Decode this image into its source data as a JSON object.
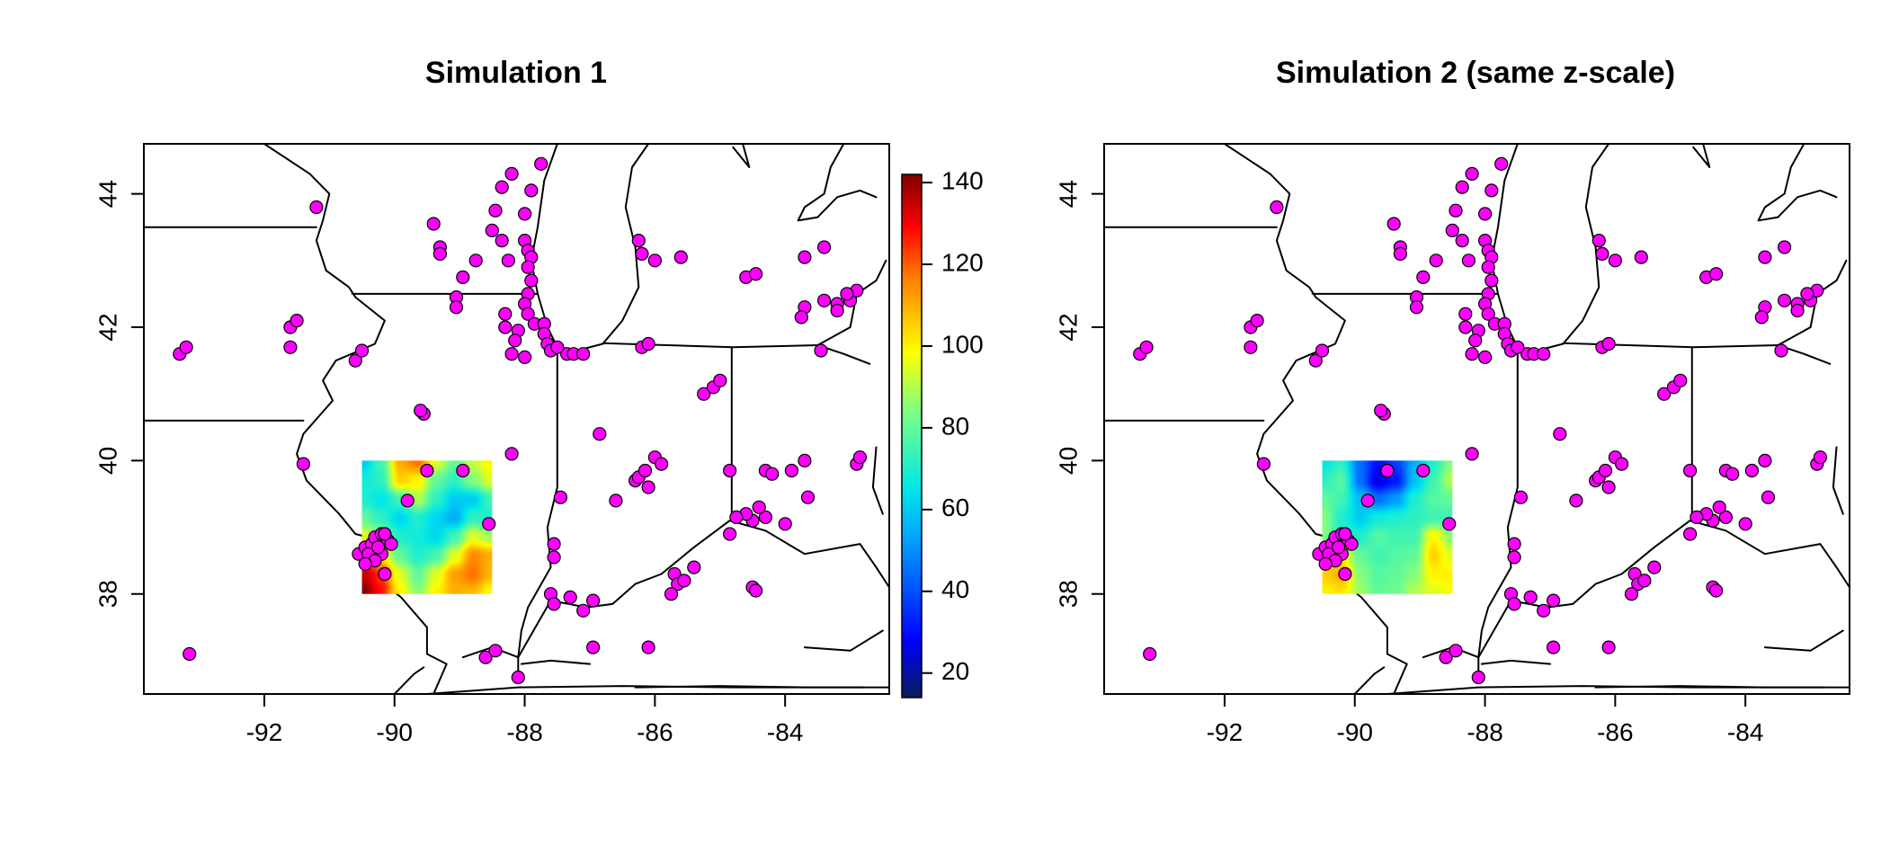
{
  "panels": [
    {
      "title": "Simulation 1",
      "field": [
        [
          60,
          75,
          110,
          118,
          95,
          80,
          92,
          100
        ],
        [
          68,
          72,
          105,
          100,
          80,
          72,
          85,
          95
        ],
        [
          70,
          65,
          75,
          90,
          72,
          60,
          60,
          75
        ],
        [
          80,
          72,
          62,
          70,
          62,
          55,
          72,
          70
        ],
        [
          95,
          85,
          70,
          68,
          62,
          75,
          95,
          88
        ],
        [
          110,
          100,
          80,
          70,
          76,
          95,
          115,
          110
        ],
        [
          135,
          125,
          95,
          80,
          95,
          112,
          118,
          108
        ],
        [
          142,
          128,
          100,
          85,
          100,
          110,
          108,
          98
        ]
      ]
    },
    {
      "title": "Simulation 2 (same z-scale)",
      "field": [
        [
          65,
          72,
          45,
          30,
          38,
          55,
          70,
          85
        ],
        [
          72,
          78,
          45,
          25,
          32,
          58,
          75,
          90
        ],
        [
          80,
          75,
          58,
          45,
          52,
          70,
          78,
          80
        ],
        [
          85,
          70,
          60,
          68,
          70,
          72,
          75,
          75
        ],
        [
          85,
          72,
          70,
          78,
          75,
          75,
          100,
          85
        ],
        [
          95,
          100,
          80,
          75,
          78,
          80,
          105,
          95
        ],
        [
          105,
          110,
          85,
          78,
          80,
          85,
          100,
          100
        ],
        [
          100,
          102,
          88,
          80,
          82,
          90,
          95,
          98
        ]
      ]
    }
  ],
  "x_ticks": [
    {
      "value": -92,
      "label": "-92"
    },
    {
      "value": -90,
      "label": "-90"
    },
    {
      "value": -88,
      "label": "-88"
    },
    {
      "value": -86,
      "label": "-86"
    },
    {
      "value": -84,
      "label": "-84"
    }
  ],
  "y_ticks": [
    {
      "value": 38,
      "label": "38"
    },
    {
      "value": 40,
      "label": "40"
    },
    {
      "value": 42,
      "label": "42"
    },
    {
      "value": 44,
      "label": "44"
    }
  ],
  "colorbar": {
    "ticks": [
      {
        "value": 20,
        "label": "20"
      },
      {
        "value": 40,
        "label": "40"
      },
      {
        "value": 60,
        "label": "60"
      },
      {
        "value": 80,
        "label": "80"
      },
      {
        "value": 100,
        "label": "100"
      },
      {
        "value": 120,
        "label": "120"
      },
      {
        "value": 140,
        "label": "140"
      }
    ],
    "min": 14,
    "max": 142
  },
  "map_extent": {
    "lon": [
      -93.85,
      -82.4
    ],
    "lat": [
      36.5,
      44.75
    ]
  },
  "field_extent": {
    "lon": [
      -90.5,
      -88.5
    ],
    "lat": [
      38.0,
      40.0
    ]
  },
  "colors": {
    "station": "#ff00ff",
    "boundary": "#000000"
  },
  "stations": [
    [
      -93.3,
      41.6
    ],
    [
      -93.2,
      41.7
    ],
    [
      -91.2,
      43.8
    ],
    [
      -91.6,
      42.0
    ],
    [
      -91.5,
      42.1
    ],
    [
      -91.6,
      41.7
    ],
    [
      -90.6,
      41.5
    ],
    [
      -90.5,
      41.65
    ],
    [
      -89.4,
      43.55
    ],
    [
      -89.3,
      43.2
    ],
    [
      -89.3,
      43.1
    ],
    [
      -88.95,
      42.75
    ],
    [
      -88.75,
      43.0
    ],
    [
      -89.05,
      42.45
    ],
    [
      -89.05,
      42.3
    ],
    [
      -88.5,
      43.45
    ],
    [
      -88.35,
      43.3
    ],
    [
      -88.25,
      43.0
    ],
    [
      -88.45,
      43.75
    ],
    [
      -88.35,
      44.1
    ],
    [
      -88.2,
      44.3
    ],
    [
      -87.75,
      44.45
    ],
    [
      -87.9,
      44.05
    ],
    [
      -88.0,
      43.7
    ],
    [
      -88.0,
      43.3
    ],
    [
      -87.95,
      43.15
    ],
    [
      -87.9,
      43.05
    ],
    [
      -87.95,
      42.9
    ],
    [
      -87.9,
      42.7
    ],
    [
      -87.95,
      42.5
    ],
    [
      -88.0,
      42.35
    ],
    [
      -87.95,
      42.2
    ],
    [
      -87.85,
      42.05
    ],
    [
      -87.7,
      42.05
    ],
    [
      -87.7,
      41.9
    ],
    [
      -87.65,
      41.75
    ],
    [
      -87.6,
      41.65
    ],
    [
      -87.35,
      41.6
    ],
    [
      -87.25,
      41.6
    ],
    [
      -87.1,
      41.6
    ],
    [
      -87.5,
      41.7
    ],
    [
      -88.1,
      41.95
    ],
    [
      -88.15,
      41.8
    ],
    [
      -88.2,
      41.6
    ],
    [
      -88.3,
      42.0
    ],
    [
      -88.3,
      42.2
    ],
    [
      -88.0,
      41.55
    ],
    [
      -86.25,
      43.3
    ],
    [
      -86.2,
      43.1
    ],
    [
      -86.0,
      43.0
    ],
    [
      -85.6,
      43.05
    ],
    [
      -86.2,
      41.7
    ],
    [
      -86.1,
      41.75
    ],
    [
      -84.6,
      42.75
    ],
    [
      -84.45,
      42.8
    ],
    [
      -83.7,
      43.05
    ],
    [
      -83.4,
      43.2
    ],
    [
      -83.7,
      42.3
    ],
    [
      -83.75,
      42.15
    ],
    [
      -83.4,
      42.4
    ],
    [
      -83.2,
      42.35
    ],
    [
      -83.0,
      42.4
    ],
    [
      -82.9,
      42.55
    ],
    [
      -83.05,
      42.5
    ],
    [
      -83.2,
      42.25
    ],
    [
      -83.45,
      41.65
    ],
    [
      -85.25,
      41.0
    ],
    [
      -85.1,
      41.1
    ],
    [
      -85.0,
      41.2
    ],
    [
      -86.85,
      40.4
    ],
    [
      -86.6,
      39.4
    ],
    [
      -86.3,
      39.7
    ],
    [
      -86.25,
      39.75
    ],
    [
      -86.15,
      39.85
    ],
    [
      -86.0,
      40.05
    ],
    [
      -85.9,
      39.95
    ],
    [
      -86.1,
      39.6
    ],
    [
      -84.3,
      39.85
    ],
    [
      -83.9,
      39.85
    ],
    [
      -84.2,
      39.8
    ],
    [
      -84.85,
      39.85
    ],
    [
      -83.7,
      40.0
    ],
    [
      -82.9,
      39.95
    ],
    [
      -82.85,
      40.05
    ],
    [
      -83.65,
      39.45
    ],
    [
      -84.3,
      39.15
    ],
    [
      -84.4,
      39.3
    ],
    [
      -84.5,
      39.1
    ],
    [
      -84.6,
      39.2
    ],
    [
      -84.75,
      39.15
    ],
    [
      -84.5,
      38.1
    ],
    [
      -84.45,
      38.05
    ],
    [
      -84.0,
      39.05
    ],
    [
      -84.85,
      38.9
    ],
    [
      -85.7,
      38.3
    ],
    [
      -85.65,
      38.15
    ],
    [
      -85.4,
      38.4
    ],
    [
      -85.55,
      38.2
    ],
    [
      -85.75,
      38.0
    ],
    [
      -87.45,
      39.45
    ],
    [
      -87.55,
      38.75
    ],
    [
      -87.55,
      38.55
    ],
    [
      -87.6,
      38.0
    ],
    [
      -87.55,
      37.85
    ],
    [
      -87.3,
      37.95
    ],
    [
      -87.1,
      37.75
    ],
    [
      -86.95,
      37.9
    ],
    [
      -86.95,
      37.2
    ],
    [
      -86.1,
      37.2
    ],
    [
      -88.6,
      37.05
    ],
    [
      -88.45,
      37.15
    ],
    [
      -88.1,
      36.75
    ],
    [
      -88.2,
      40.1
    ],
    [
      -89.55,
      40.7
    ],
    [
      -89.6,
      40.75
    ],
    [
      -89.5,
      39.85
    ],
    [
      -88.95,
      39.85
    ],
    [
      -89.8,
      39.4
    ],
    [
      -88.55,
      39.05
    ],
    [
      -91.4,
      39.95
    ],
    [
      -93.15,
      37.1
    ],
    [
      -90.55,
      38.6
    ],
    [
      -90.45,
      38.7
    ],
    [
      -90.35,
      38.75
    ],
    [
      -90.3,
      38.85
    ],
    [
      -90.2,
      38.9
    ],
    [
      -90.1,
      38.8
    ],
    [
      -90.05,
      38.75
    ],
    [
      -90.35,
      38.55
    ],
    [
      -90.2,
      38.6
    ],
    [
      -90.4,
      38.6
    ],
    [
      -90.3,
      38.5
    ],
    [
      -90.15,
      38.3
    ],
    [
      -90.25,
      38.7
    ],
    [
      -90.45,
      38.45
    ],
    [
      -90.15,
      38.9
    ]
  ]
}
